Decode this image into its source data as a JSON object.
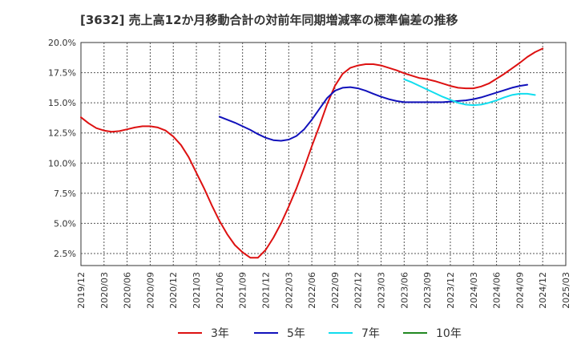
{
  "chart_data": {
    "type": "line",
    "title": "[3632]  売上高12か月移動合計の対前年同期増減率の標準偏差の推移",
    "xlabel": "",
    "ylabel": "",
    "x_ticks": [
      "2019/12",
      "2020/03",
      "2020/06",
      "2020/09",
      "2020/12",
      "2021/03",
      "2021/06",
      "2021/09",
      "2021/12",
      "2022/03",
      "2022/06",
      "2022/09",
      "2022/12",
      "2023/03",
      "2023/06",
      "2023/09",
      "2023/12",
      "2024/03",
      "2024/06",
      "2024/09",
      "2024/12",
      "2025/03"
    ],
    "y_ticks": [
      "2.5%",
      "5.0%",
      "7.5%",
      "10.0%",
      "12.5%",
      "15.0%",
      "17.5%",
      "20.0%"
    ],
    "ylim": [
      1.5,
      20.0
    ],
    "grid": true,
    "legend_position": "bottom",
    "series": [
      {
        "name": "3年",
        "color": "#dd1111",
        "points": [
          [
            "2019/12",
            13.8
          ],
          [
            "2020/01",
            13.3
          ],
          [
            "2020/02",
            12.9
          ],
          [
            "2020/03",
            12.7
          ],
          [
            "2020/04",
            12.6
          ],
          [
            "2020/05",
            12.65
          ],
          [
            "2020/06",
            12.8
          ],
          [
            "2020/07",
            12.95
          ],
          [
            "2020/08",
            13.05
          ],
          [
            "2020/09",
            13.05
          ],
          [
            "2020/10",
            12.95
          ],
          [
            "2020/11",
            12.7
          ],
          [
            "2020/12",
            12.2
          ],
          [
            "2021/01",
            11.5
          ],
          [
            "2021/02",
            10.5
          ],
          [
            "2021/03",
            9.2
          ],
          [
            "2021/04",
            7.9
          ],
          [
            "2021/05",
            6.5
          ],
          [
            "2021/06",
            5.2
          ],
          [
            "2021/07",
            4.1
          ],
          [
            "2021/08",
            3.2
          ],
          [
            "2021/09",
            2.6
          ],
          [
            "2021/10",
            2.15
          ],
          [
            "2021/11",
            2.15
          ],
          [
            "2021/12",
            2.8
          ],
          [
            "2022/01",
            3.8
          ],
          [
            "2022/02",
            5.0
          ],
          [
            "2022/03",
            6.4
          ],
          [
            "2022/04",
            7.9
          ],
          [
            "2022/05",
            9.6
          ],
          [
            "2022/06",
            11.4
          ],
          [
            "2022/07",
            13.1
          ],
          [
            "2022/08",
            14.9
          ],
          [
            "2022/09",
            16.4
          ],
          [
            "2022/10",
            17.4
          ],
          [
            "2022/11",
            17.9
          ],
          [
            "2022/12",
            18.1
          ],
          [
            "2023/01",
            18.2
          ],
          [
            "2023/02",
            18.2
          ],
          [
            "2023/03",
            18.1
          ],
          [
            "2023/04",
            17.9
          ],
          [
            "2023/05",
            17.7
          ],
          [
            "2023/06",
            17.45
          ],
          [
            "2023/07",
            17.25
          ],
          [
            "2023/08",
            17.05
          ],
          [
            "2023/09",
            16.95
          ],
          [
            "2023/10",
            16.8
          ],
          [
            "2023/11",
            16.6
          ],
          [
            "2023/12",
            16.4
          ],
          [
            "2024/01",
            16.25
          ],
          [
            "2024/02",
            16.2
          ],
          [
            "2024/03",
            16.2
          ],
          [
            "2024/04",
            16.35
          ],
          [
            "2024/05",
            16.6
          ],
          [
            "2024/06",
            17.0
          ],
          [
            "2024/07",
            17.4
          ],
          [
            "2024/08",
            17.85
          ],
          [
            "2024/09",
            18.3
          ],
          [
            "2024/10",
            18.8
          ],
          [
            "2024/11",
            19.2
          ],
          [
            "2024/12",
            19.5
          ]
        ]
      },
      {
        "name": "5年",
        "color": "#1111bb",
        "points": [
          [
            "2021/06",
            13.85
          ],
          [
            "2021/07",
            13.6
          ],
          [
            "2021/08",
            13.35
          ],
          [
            "2021/09",
            13.05
          ],
          [
            "2021/10",
            12.75
          ],
          [
            "2021/11",
            12.4
          ],
          [
            "2021/12",
            12.1
          ],
          [
            "2022/01",
            11.9
          ],
          [
            "2022/02",
            11.85
          ],
          [
            "2022/03",
            11.95
          ],
          [
            "2022/04",
            12.25
          ],
          [
            "2022/05",
            12.8
          ],
          [
            "2022/06",
            13.6
          ],
          [
            "2022/07",
            14.5
          ],
          [
            "2022/08",
            15.4
          ],
          [
            "2022/09",
            16.0
          ],
          [
            "2022/10",
            16.25
          ],
          [
            "2022/11",
            16.3
          ],
          [
            "2022/12",
            16.2
          ],
          [
            "2023/01",
            16.0
          ],
          [
            "2023/02",
            15.75
          ],
          [
            "2023/03",
            15.5
          ],
          [
            "2023/04",
            15.3
          ],
          [
            "2023/05",
            15.15
          ],
          [
            "2023/06",
            15.05
          ],
          [
            "2023/07",
            15.05
          ],
          [
            "2023/08",
            15.05
          ],
          [
            "2023/09",
            15.05
          ],
          [
            "2023/10",
            15.05
          ],
          [
            "2023/11",
            15.05
          ],
          [
            "2023/12",
            15.1
          ],
          [
            "2024/01",
            15.15
          ],
          [
            "2024/02",
            15.2
          ],
          [
            "2024/03",
            15.3
          ],
          [
            "2024/04",
            15.45
          ],
          [
            "2024/05",
            15.65
          ],
          [
            "2024/06",
            15.85
          ],
          [
            "2024/07",
            16.05
          ],
          [
            "2024/08",
            16.25
          ],
          [
            "2024/09",
            16.4
          ],
          [
            "2024/10",
            16.5
          ]
        ]
      },
      {
        "name": "7年",
        "color": "#11ddee",
        "points": [
          [
            "2023/06",
            16.95
          ],
          [
            "2023/07",
            16.7
          ],
          [
            "2023/08",
            16.4
          ],
          [
            "2023/09",
            16.1
          ],
          [
            "2023/10",
            15.8
          ],
          [
            "2023/11",
            15.5
          ],
          [
            "2023/12",
            15.25
          ],
          [
            "2024/01",
            15.0
          ],
          [
            "2024/02",
            14.85
          ],
          [
            "2024/03",
            14.8
          ],
          [
            "2024/04",
            14.85
          ],
          [
            "2024/05",
            15.0
          ],
          [
            "2024/06",
            15.2
          ],
          [
            "2024/07",
            15.45
          ],
          [
            "2024/08",
            15.65
          ],
          [
            "2024/09",
            15.75
          ],
          [
            "2024/10",
            15.75
          ],
          [
            "2024/11",
            15.65
          ]
        ]
      },
      {
        "name": "10年",
        "color": "#228822",
        "points": []
      }
    ]
  }
}
